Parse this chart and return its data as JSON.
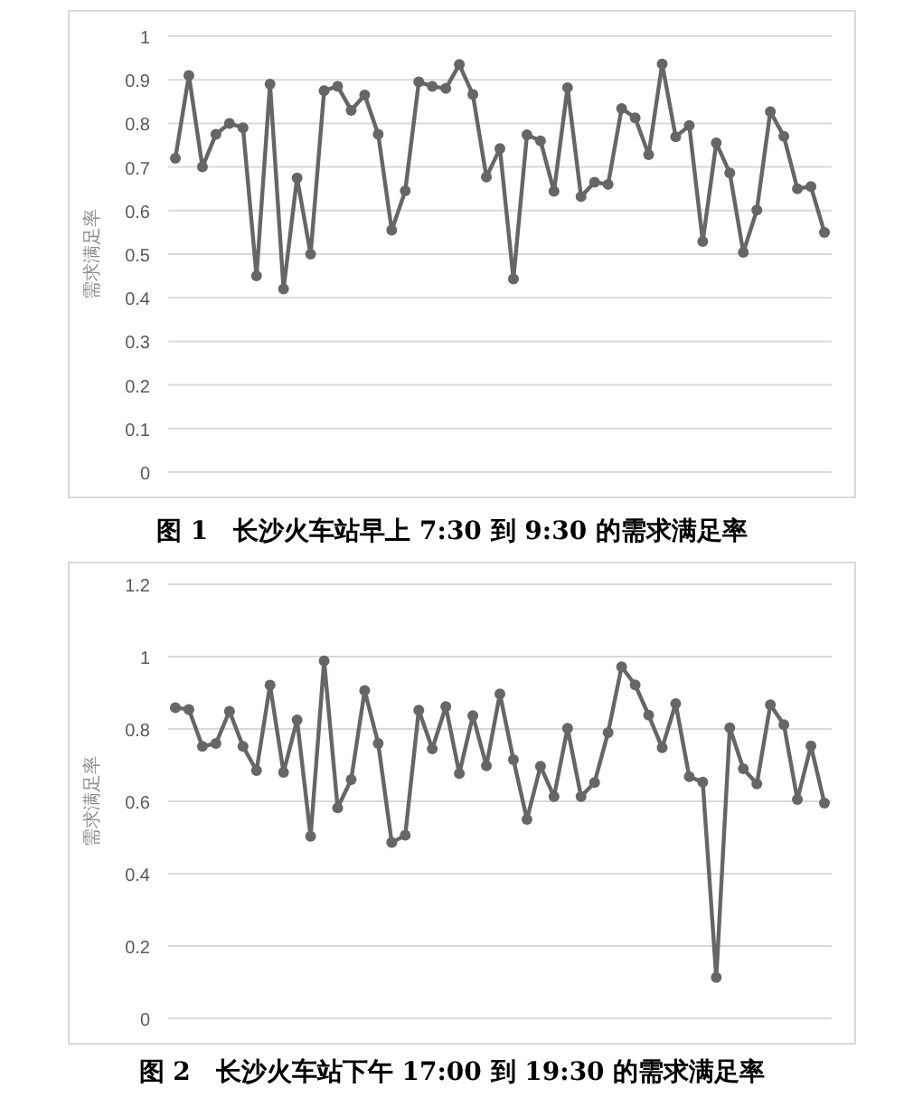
{
  "chart_data": [
    {
      "type": "line",
      "title": "图 1　长沙火车站早上 7:30 到 9:30 的需求满足率",
      "ylabel": "需求满足率",
      "categories": [
        null,
        null,
        null,
        null,
        null,
        null,
        null,
        null,
        null,
        null,
        null,
        null,
        null,
        null,
        null,
        null,
        null,
        null,
        null,
        null,
        null,
        null,
        null,
        null,
        null,
        null,
        null,
        null,
        null,
        null,
        null,
        null,
        null,
        null,
        null,
        null,
        null,
        null,
        null,
        null,
        null,
        null,
        null,
        null,
        null,
        null,
        null,
        null,
        null
      ],
      "series": [
        {
          "color": "#666666",
          "values": [
            0.72,
            0.91,
            0.7,
            0.775,
            0.8,
            0.79,
            0.45,
            0.89,
            0.42,
            0.675,
            0.5,
            0.875,
            0.885,
            0.83,
            0.865,
            0.775,
            0.555,
            0.645,
            0.895,
            0.885,
            0.88,
            0.935,
            0.866,
            0.677,
            0.742,
            0.443,
            0.774,
            0.76,
            0.644,
            0.882,
            0.632,
            0.665,
            0.66,
            0.834,
            0.813,
            0.728,
            0.936,
            0.769,
            0.795,
            0.529,
            0.755,
            0.686,
            0.504,
            0.601,
            0.827,
            0.77,
            0.65,
            0.655,
            0.55
          ]
        }
      ],
      "ylim": [
        0,
        1
      ],
      "yticks": [
        0,
        0.1,
        0.2,
        0.3,
        0.4,
        0.5,
        0.6,
        0.7,
        0.8,
        0.9,
        1
      ],
      "grid": "y",
      "marker": "circle",
      "line_style": "solid"
    },
    {
      "type": "line",
      "title": "图 2　长沙火车站下午 17:00 到 19:30 的需求满足率",
      "ylabel": "需求满足率",
      "categories": [
        null,
        null,
        null,
        null,
        null,
        null,
        null,
        null,
        null,
        null,
        null,
        null,
        null,
        null,
        null,
        null,
        null,
        null,
        null,
        null,
        null,
        null,
        null,
        null,
        null,
        null,
        null,
        null,
        null,
        null,
        null,
        null,
        null,
        null,
        null,
        null,
        null,
        null,
        null,
        null,
        null,
        null,
        null,
        null,
        null,
        null,
        null,
        null,
        null
      ],
      "series": [
        {
          "color": "#666666",
          "values": [
            0.859,
            0.854,
            0.752,
            0.76,
            0.849,
            0.752,
            0.685,
            0.921,
            0.68,
            0.825,
            0.503,
            0.988,
            0.582,
            0.66,
            0.906,
            0.76,
            0.486,
            0.506,
            0.852,
            0.745,
            0.862,
            0.677,
            0.837,
            0.698,
            0.897,
            0.715,
            0.55,
            0.697,
            0.613,
            0.802,
            0.613,
            0.652,
            0.79,
            0.972,
            0.922,
            0.838,
            0.748,
            0.87,
            0.668,
            0.653,
            0.113,
            0.803,
            0.69,
            0.648,
            0.867,
            0.812,
            0.605,
            0.753,
            0.595
          ]
        }
      ],
      "ylim": [
        0,
        1.2
      ],
      "yticks": [
        0,
        0.2,
        0.4,
        0.6,
        0.8,
        1,
        1.2
      ],
      "grid": "y",
      "marker": "circle",
      "line_style": "solid"
    }
  ]
}
